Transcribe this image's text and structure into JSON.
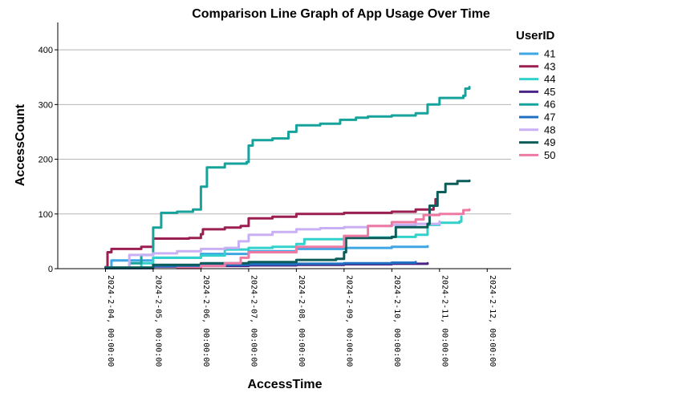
{
  "chart_data": {
    "type": "line",
    "title": "Comparison Line Graph of App Usage Over Time",
    "xlabel": "AccessTime",
    "ylabel": "AccessCount",
    "ylim": [
      0,
      450
    ],
    "yticks": [
      0,
      100,
      200,
      300,
      400
    ],
    "xlim": [
      "2024-02-03 00:00",
      "2024-02-12 12:00"
    ],
    "xticks": [
      "2024-2-04, 00:00:00",
      "2024-2-05, 00:00:00",
      "2024-2-06, 00:00:00",
      "2024-2-07, 00:00:00",
      "2024-2-08, 00:00:00",
      "2024-2-09, 00:00:00",
      "2024-2-10, 00:00:00",
      "2024-2-11, 00:00:00",
      "2024-2-12, 00:00:00"
    ],
    "grid": "horizontal",
    "legend": {
      "title": "UserID",
      "position": "right"
    },
    "series": [
      {
        "name": "41",
        "color": "#3fa6e6",
        "points": [
          [
            "2024-02-04 00:00",
            2
          ],
          [
            "2024-02-04 03:00",
            15
          ],
          [
            "2024-02-05 00:00",
            20
          ],
          [
            "2024-02-06 00:00",
            27
          ],
          [
            "2024-02-07 00:00",
            32
          ],
          [
            "2024-02-08 00:00",
            36
          ],
          [
            "2024-02-09 00:00",
            38
          ],
          [
            "2024-02-10 00:00",
            40
          ],
          [
            "2024-02-10 18:00",
            41
          ]
        ]
      },
      {
        "name": "43",
        "color": "#9b1f50",
        "points": [
          [
            "2024-02-04 00:00",
            3
          ],
          [
            "2024-02-04 01:00",
            30
          ],
          [
            "2024-02-04 03:00",
            36
          ],
          [
            "2024-02-04 18:00",
            40
          ],
          [
            "2024-02-05 00:00",
            55
          ],
          [
            "2024-02-05 18:00",
            56
          ],
          [
            "2024-02-06 00:00",
            63
          ],
          [
            "2024-02-06 01:00",
            72
          ],
          [
            "2024-02-06 12:00",
            75
          ],
          [
            "2024-02-06 20:00",
            78
          ],
          [
            "2024-02-07 00:00",
            92
          ],
          [
            "2024-02-07 12:00",
            95
          ],
          [
            "2024-02-08 00:00",
            100
          ],
          [
            "2024-02-09 00:00",
            102
          ],
          [
            "2024-02-10 00:00",
            104
          ],
          [
            "2024-02-10 12:00",
            108
          ],
          [
            "2024-02-10 21:00",
            115
          ],
          [
            "2024-02-10 22:00",
            127
          ]
        ]
      },
      {
        "name": "44",
        "color": "#33d1cc",
        "points": [
          [
            "2024-02-04 00:00",
            1
          ],
          [
            "2024-02-04 18:00",
            10
          ],
          [
            "2024-02-05 00:00",
            20
          ],
          [
            "2024-02-06 00:00",
            24
          ],
          [
            "2024-02-06 12:00",
            35
          ],
          [
            "2024-02-07 00:00",
            38
          ],
          [
            "2024-02-07 12:00",
            40
          ],
          [
            "2024-02-08 00:00",
            45
          ],
          [
            "2024-02-08 04:00",
            54
          ],
          [
            "2024-02-09 00:00",
            57
          ],
          [
            "2024-02-10 00:00",
            58
          ],
          [
            "2024-02-10 12:00",
            62
          ],
          [
            "2024-02-10 18:00",
            80
          ],
          [
            "2024-02-11 00:00",
            84
          ],
          [
            "2024-02-11 10:00",
            86
          ],
          [
            "2024-02-11 11:00",
            95
          ]
        ]
      },
      {
        "name": "45",
        "color": "#4b2487",
        "points": [
          [
            "2024-02-04 00:00",
            1
          ],
          [
            "2024-02-05 00:00",
            4
          ],
          [
            "2024-02-06 00:00",
            5
          ],
          [
            "2024-02-07 00:00",
            6
          ],
          [
            "2024-02-08 00:00",
            7
          ],
          [
            "2024-02-09 00:00",
            8
          ],
          [
            "2024-02-10 00:00",
            9
          ],
          [
            "2024-02-10 18:00",
            10
          ]
        ]
      },
      {
        "name": "46",
        "color": "#16a39b",
        "points": [
          [
            "2024-02-04 00:00",
            1
          ],
          [
            "2024-02-04 12:00",
            10
          ],
          [
            "2024-02-04 18:00",
            25
          ],
          [
            "2024-02-05 00:00",
            75
          ],
          [
            "2024-02-05 04:00",
            102
          ],
          [
            "2024-02-05 12:00",
            104
          ],
          [
            "2024-02-05 20:00",
            108
          ],
          [
            "2024-02-06 00:00",
            150
          ],
          [
            "2024-02-06 03:00",
            185
          ],
          [
            "2024-02-06 12:00",
            192
          ],
          [
            "2024-02-06 23:00",
            195
          ],
          [
            "2024-02-07 00:00",
            225
          ],
          [
            "2024-02-07 02:00",
            235
          ],
          [
            "2024-02-07 12:00",
            238
          ],
          [
            "2024-02-07 20:00",
            250
          ],
          [
            "2024-02-08 00:00",
            262
          ],
          [
            "2024-02-08 12:00",
            265
          ],
          [
            "2024-02-08 22:00",
            272
          ],
          [
            "2024-02-09 06:00",
            276
          ],
          [
            "2024-02-09 12:00",
            278
          ],
          [
            "2024-02-10 00:00",
            280
          ],
          [
            "2024-02-10 12:00",
            284
          ],
          [
            "2024-02-10 18:00",
            300
          ],
          [
            "2024-02-11 00:00",
            312
          ],
          [
            "2024-02-11 12:00",
            316
          ],
          [
            "2024-02-11 13:00",
            329
          ],
          [
            "2024-02-11 15:00",
            332
          ]
        ]
      },
      {
        "name": "47",
        "color": "#1f6fc2",
        "points": [
          [
            "2024-02-04 00:00",
            1
          ],
          [
            "2024-02-05 00:00",
            5
          ],
          [
            "2024-02-06 00:00",
            7
          ],
          [
            "2024-02-07 00:00",
            8
          ],
          [
            "2024-02-08 00:00",
            9
          ],
          [
            "2024-02-09 00:00",
            10
          ],
          [
            "2024-02-10 00:00",
            11
          ],
          [
            "2024-02-10 12:00",
            12
          ]
        ]
      },
      {
        "name": "48",
        "color": "#c9b0f5",
        "points": [
          [
            "2024-02-04 00:00",
            2
          ],
          [
            "2024-02-04 12:00",
            25
          ],
          [
            "2024-02-05 00:00",
            28
          ],
          [
            "2024-02-05 12:00",
            32
          ],
          [
            "2024-02-06 00:00",
            36
          ],
          [
            "2024-02-06 12:00",
            38
          ],
          [
            "2024-02-06 19:00",
            50
          ],
          [
            "2024-02-07 00:00",
            62
          ],
          [
            "2024-02-07 12:00",
            67
          ],
          [
            "2024-02-08 00:00",
            72
          ],
          [
            "2024-02-08 12:00",
            74
          ],
          [
            "2024-02-09 00:00",
            76
          ],
          [
            "2024-02-09 12:00",
            78
          ],
          [
            "2024-02-10 00:00",
            80
          ],
          [
            "2024-02-10 12:00",
            82
          ],
          [
            "2024-02-11 00:00",
            86
          ]
        ]
      },
      {
        "name": "49",
        "color": "#0c5c59",
        "points": [
          [
            "2024-02-04 00:00",
            2
          ],
          [
            "2024-02-05 00:00",
            7
          ],
          [
            "2024-02-06 00:00",
            10
          ],
          [
            "2024-02-07 00:00",
            12
          ],
          [
            "2024-02-08 00:00",
            16
          ],
          [
            "2024-02-08 20:00",
            18
          ],
          [
            "2024-02-09 00:00",
            30
          ],
          [
            "2024-02-09 01:00",
            56
          ],
          [
            "2024-02-10 00:00",
            58
          ],
          [
            "2024-02-10 02:00",
            76
          ],
          [
            "2024-02-10 18:00",
            82
          ],
          [
            "2024-02-10 19:00",
            115
          ],
          [
            "2024-02-10 23:00",
            140
          ],
          [
            "2024-02-11 03:00",
            155
          ],
          [
            "2024-02-11 09:00",
            160
          ],
          [
            "2024-02-11 15:00",
            161
          ]
        ]
      },
      {
        "name": "50",
        "color": "#ee7aa4",
        "points": [
          [
            "2024-02-05 12:00",
            1
          ],
          [
            "2024-02-06 00:00",
            5
          ],
          [
            "2024-02-06 12:00",
            10
          ],
          [
            "2024-02-06 20:00",
            20
          ],
          [
            "2024-02-07 00:00",
            30
          ],
          [
            "2024-02-08 00:00",
            40
          ],
          [
            "2024-02-09 00:00",
            60
          ],
          [
            "2024-02-09 12:00",
            78
          ],
          [
            "2024-02-10 00:00",
            85
          ],
          [
            "2024-02-10 12:00",
            90
          ],
          [
            "2024-02-10 16:00",
            98
          ],
          [
            "2024-02-11 00:00",
            100
          ],
          [
            "2024-02-11 12:00",
            107
          ],
          [
            "2024-02-11 15:00",
            108
          ]
        ]
      }
    ]
  }
}
